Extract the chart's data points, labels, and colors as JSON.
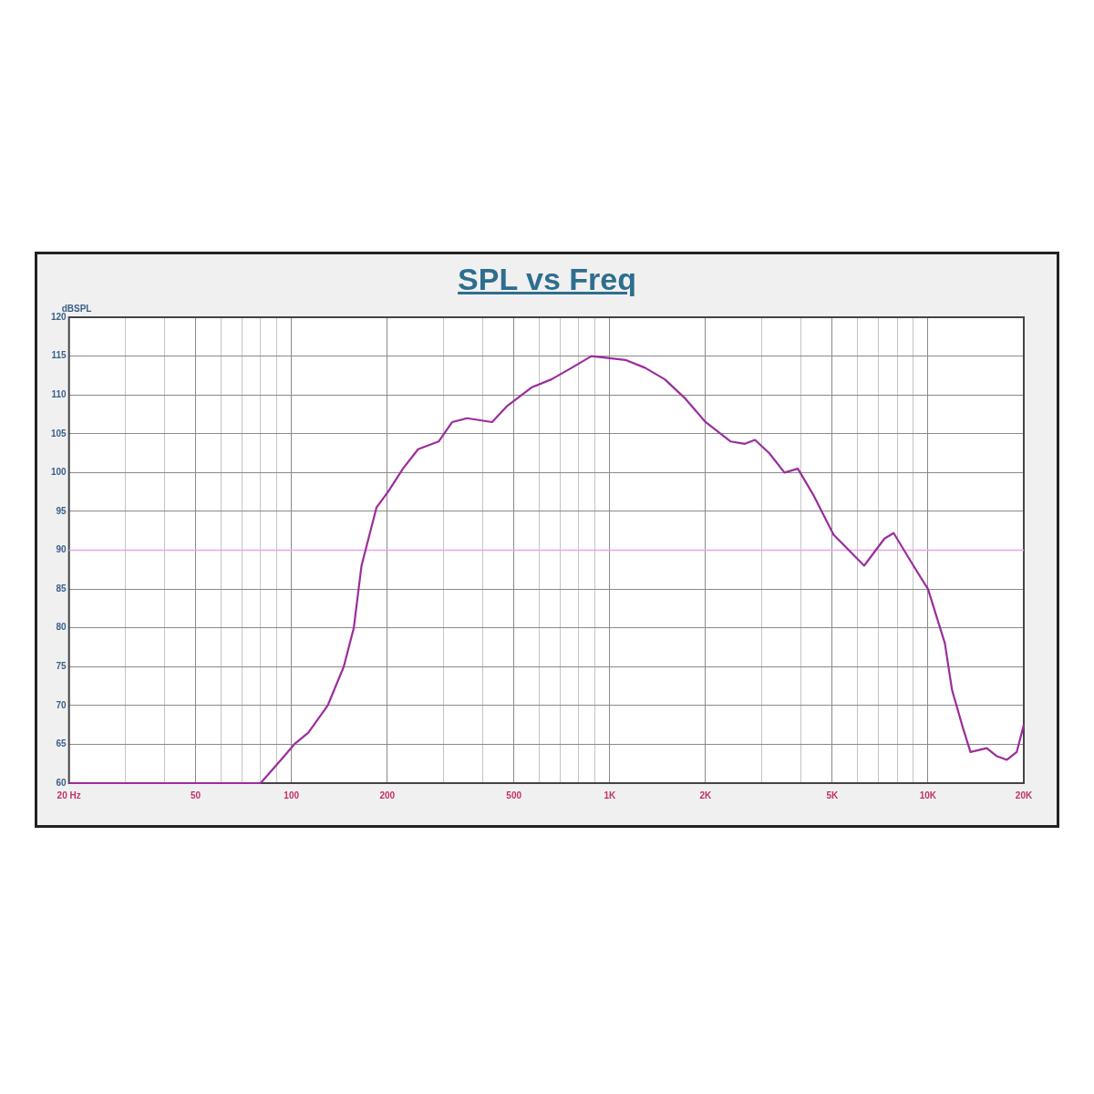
{
  "chart_data": {
    "type": "line",
    "title": "SPL vs Freq",
    "ylabel": "dBSPL",
    "log": "x",
    "xlim": [
      20,
      20000
    ],
    "ylim": [
      60,
      120
    ],
    "xticks": [
      {
        "value": 20,
        "label": "20 Hz"
      },
      {
        "value": 30,
        "label": null
      },
      {
        "value": 40,
        "label": null
      },
      50,
      {
        "value": 60,
        "label": null
      },
      {
        "value": 70,
        "label": null
      },
      {
        "value": 80,
        "label": null
      },
      {
        "value": 90,
        "label": null
      },
      100,
      200,
      {
        "value": 300,
        "label": null
      },
      {
        "value": 400,
        "label": null
      },
      500,
      {
        "value": 600,
        "label": null
      },
      {
        "value": 700,
        "label": null
      },
      {
        "value": 800,
        "label": null
      },
      {
        "value": 900,
        "label": null
      },
      {
        "value": 1000,
        "label": "1K"
      },
      {
        "value": 2000,
        "label": "2K"
      },
      {
        "value": 3000,
        "label": null
      },
      {
        "value": 4000,
        "label": null
      },
      {
        "value": 5000,
        "label": "5K"
      },
      {
        "value": 6000,
        "label": null
      },
      {
        "value": 7000,
        "label": null
      },
      {
        "value": 8000,
        "label": null
      },
      {
        "value": 9000,
        "label": null
      },
      {
        "value": 10000,
        "label": "10K"
      },
      {
        "value": 20000,
        "label": "20K"
      }
    ],
    "yticks": [
      60,
      65,
      70,
      75,
      80,
      85,
      90,
      95,
      100,
      105,
      110,
      115,
      120
    ],
    "grid": true,
    "marker": "none",
    "line_style": "solid",
    "ref_lines": [
      {
        "axis": "y",
        "value": 90,
        "color": "#e6a8e6"
      }
    ],
    "series": [
      {
        "color": "#9b2d9b",
        "x": [
          20,
          80,
          95,
          102,
          113,
          130,
          146,
          157,
          166,
          185,
          201,
          224,
          250,
          290,
          320,
          356,
          427,
          474,
          570,
          656,
          760,
          876,
          970,
          1120,
          1290,
          1490,
          1730,
          2000,
          2400,
          2660,
          2860,
          3170,
          3540,
          3900,
          4380,
          5050,
          6300,
          7300,
          7800,
          9000,
          10000,
          11300,
          11900,
          12900,
          13600,
          15300,
          16400,
          17700,
          19000,
          20000
        ],
        "values": [
          60,
          60,
          63.5,
          65,
          66.5,
          70,
          75,
          80,
          88,
          95.5,
          97.5,
          100.5,
          103,
          104,
          106.5,
          107,
          106.5,
          108.5,
          111,
          112,
          113.5,
          115,
          114.8,
          114.5,
          113.5,
          112,
          109.5,
          106.5,
          104,
          103.7,
          104.2,
          102.5,
          100,
          100.5,
          97,
          92,
          88,
          91.5,
          92.2,
          88,
          85,
          78,
          72,
          67,
          64,
          64.5,
          63.5,
          63,
          64,
          67.5
        ]
      }
    ]
  }
}
